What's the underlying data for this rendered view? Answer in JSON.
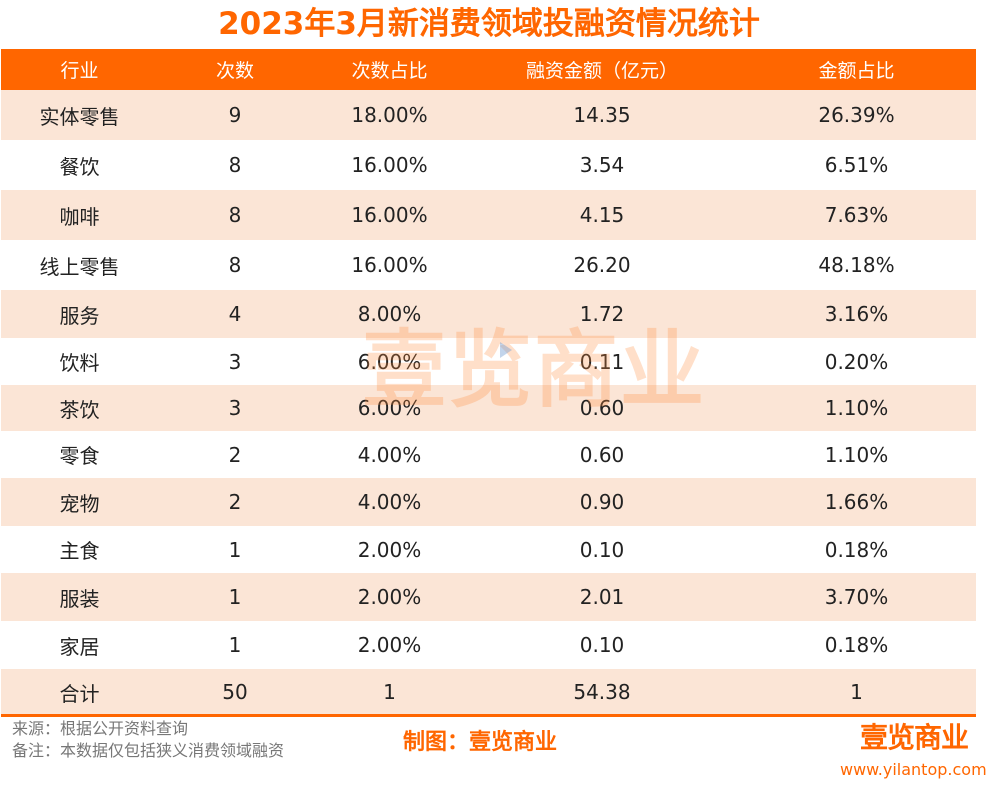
{
  "title": "2023年3月新消费领域投融资情况统计",
  "table": {
    "headers": [
      "行业",
      "次数",
      "次数占比",
      "融资金额（亿元）",
      "金额占比"
    ],
    "rows": [
      [
        "实体零售",
        "9",
        "18.00%",
        "14.35",
        "26.39%"
      ],
      [
        "餐饮",
        "8",
        "16.00%",
        "3.54",
        "6.51%"
      ],
      [
        "咖啡",
        "8",
        "16.00%",
        "4.15",
        "7.63%"
      ],
      [
        "线上零售",
        "8",
        "16.00%",
        "26.20",
        "48.18%"
      ],
      [
        "服务",
        "4",
        "8.00%",
        "1.72",
        "3.16%"
      ],
      [
        "饮料",
        "3",
        "6.00%",
        "0.11",
        "0.20%"
      ],
      [
        "茶饮",
        "3",
        "6.00%",
        "0.60",
        "1.10%"
      ],
      [
        "零食",
        "2",
        "4.00%",
        "0.60",
        "1.10%"
      ],
      [
        "宠物",
        "2",
        "4.00%",
        "0.90",
        "1.66%"
      ],
      [
        "主食",
        "1",
        "2.00%",
        "0.10",
        "0.18%"
      ],
      [
        "服装",
        "1",
        "2.00%",
        "2.01",
        "3.70%"
      ],
      [
        "家居",
        "1",
        "2.00%",
        "0.10",
        "0.18%"
      ],
      [
        "合计",
        "50",
        "1",
        "54.38",
        "1"
      ]
    ]
  },
  "watermark": "壹览商业",
  "footer": {
    "source": "来源：根据公开资料查询",
    "note": "备注：本数据仅包括狭义消费领域融资",
    "credit": "制图：壹览商业",
    "logo": "壹览商业",
    "url": "www.yilantop.com"
  },
  "colors": {
    "accent": "#ff6600",
    "shaded_row": "#fbe5d6"
  },
  "chart_data": {
    "type": "table",
    "title": "2023年3月新消费领域投融资情况统计",
    "columns": [
      "行业",
      "次数",
      "次数占比",
      "融资金额（亿元）",
      "金额占比"
    ],
    "categories": [
      "实体零售",
      "餐饮",
      "咖啡",
      "线上零售",
      "服务",
      "饮料",
      "茶饮",
      "零食",
      "宠物",
      "主食",
      "服装",
      "家居"
    ],
    "series": [
      {
        "name": "次数",
        "values": [
          9,
          8,
          8,
          8,
          4,
          3,
          3,
          2,
          2,
          1,
          1,
          1
        ]
      },
      {
        "name": "次数占比",
        "values": [
          18.0,
          16.0,
          16.0,
          16.0,
          8.0,
          6.0,
          6.0,
          4.0,
          4.0,
          2.0,
          2.0,
          2.0
        ]
      },
      {
        "name": "融资金额（亿元）",
        "values": [
          14.35,
          3.54,
          4.15,
          26.2,
          1.72,
          0.11,
          0.6,
          0.6,
          0.9,
          0.1,
          2.01,
          0.1
        ]
      },
      {
        "name": "金额占比",
        "values": [
          26.39,
          6.51,
          7.63,
          48.18,
          3.16,
          0.2,
          1.1,
          1.1,
          1.66,
          0.18,
          3.7,
          0.18
        ]
      }
    ],
    "totals": {
      "次数": 50,
      "次数占比": 1,
      "融资金额（亿元）": 54.38,
      "金额占比": 1
    }
  }
}
